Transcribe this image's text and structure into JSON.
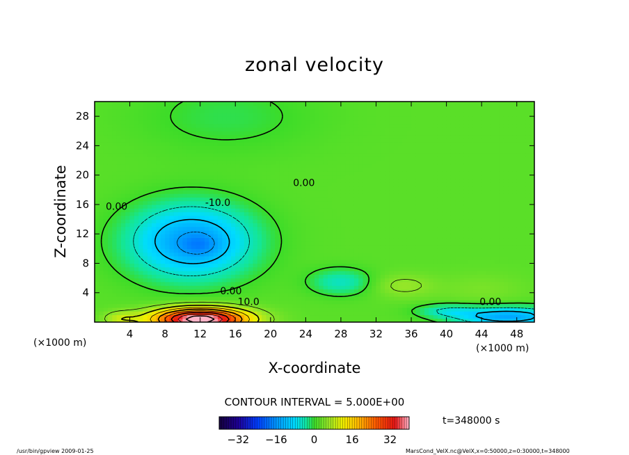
{
  "chart_data": {
    "type": "heatmap",
    "title": "zonal velocity",
    "xlabel": "X-coordinate",
    "ylabel": "Z-coordinate",
    "x_unit_note": "(×1000 m)",
    "z_unit_note": "(×1000 m)",
    "xlim": [
      0,
      50
    ],
    "ylim": [
      0,
      30
    ],
    "x_ticks": [
      4,
      8,
      12,
      16,
      20,
      24,
      28,
      32,
      36,
      40,
      44,
      48
    ],
    "x_tick_labels": [
      "4",
      "8",
      "12",
      "16",
      "20",
      "24",
      "28",
      "32",
      "36",
      "40",
      "44",
      "48"
    ],
    "y_ticks": [
      4,
      8,
      12,
      16,
      20,
      24,
      28
    ],
    "y_tick_labels": [
      "4",
      "8",
      "12",
      "16",
      "20",
      "24",
      "28"
    ],
    "contour_interval_label": "CONTOUR INTERVAL = 5.000E+00",
    "time_label": "t=348000 s",
    "contour_labels": [
      {
        "text": "0.00",
        "x": 2.5,
        "z": 15.3
      },
      {
        "text": "0.00",
        "x": 23.8,
        "z": 18.5
      },
      {
        "text": "-10.0",
        "x": 14.0,
        "z": 15.8
      },
      {
        "text": "0.00",
        "x": 15.5,
        "z": 3.8
      },
      {
        "text": "10.0",
        "x": 17.5,
        "z": 2.3
      },
      {
        "text": "0.00",
        "x": 45.0,
        "z": 2.3
      }
    ],
    "colorbar": {
      "range": [
        -40,
        40
      ],
      "ticks": [
        -32,
        -16,
        0,
        16,
        32
      ],
      "tick_labels": [
        "−32",
        "−16",
        "0",
        "16",
        "32"
      ]
    },
    "footer_left": "/usr/bin/gpview   2009-01-25",
    "footer_right": "MarsCond_VelX.nc@VelX,x=0:50000,z=0:30000,t=348000"
  }
}
